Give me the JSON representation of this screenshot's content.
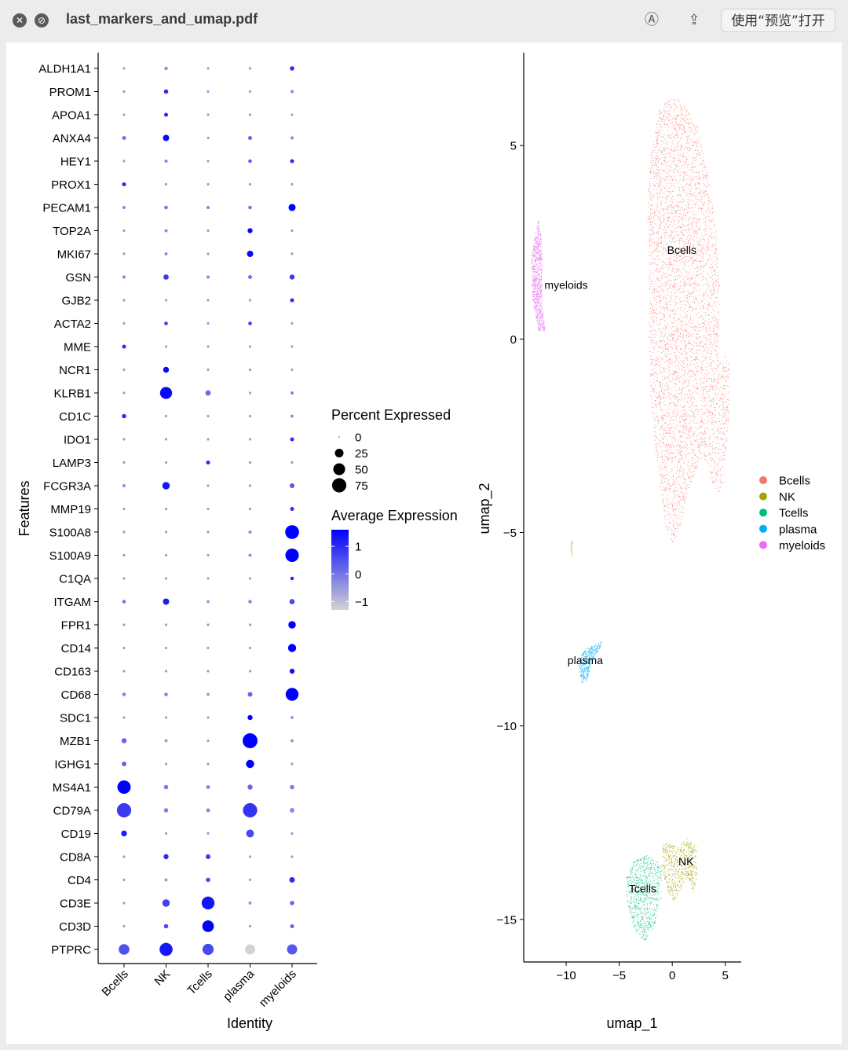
{
  "window": {
    "title": "last_markers_and_umap.pdf",
    "open_with_label": "使用“预览”打开"
  },
  "chart_data": [
    {
      "type": "dotplot",
      "xlabel": "Identity",
      "ylabel": "Features",
      "identities": [
        "Bcells",
        "NK",
        "Tcells",
        "plasma",
        "myeloids"
      ],
      "features": [
        "ALDH1A1",
        "PROM1",
        "APOA1",
        "ANXA4",
        "HEY1",
        "PROX1",
        "PECAM1",
        "TOP2A",
        "MKI67",
        "GSN",
        "GJB2",
        "ACTA2",
        "MME",
        "NCR1",
        "KLRB1",
        "CD1C",
        "IDO1",
        "LAMP3",
        "FCGR3A",
        "MMP19",
        "S100A8",
        "S100A9",
        "C1QA",
        "ITGAM",
        "FPR1",
        "CD14",
        "CD163",
        "CD68",
        "SDC1",
        "MZB1",
        "IGHG1",
        "MS4A1",
        "CD79A",
        "CD19",
        "CD8A",
        "CD4",
        "CD3E",
        "CD3D",
        "PTPRC"
      ],
      "pct_expressed": [
        [
          1,
          3,
          1,
          1,
          5
        ],
        [
          1,
          5,
          1,
          1,
          2
        ],
        [
          1,
          4,
          1,
          1,
          1
        ],
        [
          4,
          12,
          1,
          4,
          2
        ],
        [
          1,
          2,
          1,
          3,
          4
        ],
        [
          4,
          1,
          1,
          1,
          1
        ],
        [
          2,
          3,
          2,
          3,
          16
        ],
        [
          1,
          2,
          1,
          7,
          1
        ],
        [
          1,
          2,
          1,
          12,
          1
        ],
        [
          2,
          8,
          2,
          4,
          7
        ],
        [
          1,
          1,
          1,
          1,
          4
        ],
        [
          1,
          3,
          1,
          3,
          1
        ],
        [
          4,
          1,
          1,
          1,
          1
        ],
        [
          1,
          10,
          1,
          1,
          1
        ],
        [
          1,
          52,
          8,
          1,
          2
        ],
        [
          5,
          1,
          1,
          1,
          2
        ],
        [
          1,
          1,
          1,
          1,
          4
        ],
        [
          1,
          1,
          4,
          1,
          1
        ],
        [
          2,
          18,
          1,
          1,
          6
        ],
        [
          1,
          1,
          1,
          1,
          4
        ],
        [
          1,
          1,
          1,
          2,
          70
        ],
        [
          1,
          1,
          1,
          2,
          66
        ],
        [
          1,
          1,
          1,
          1,
          3
        ],
        [
          3,
          12,
          2,
          3,
          8
        ],
        [
          1,
          1,
          1,
          1,
          18
        ],
        [
          1,
          1,
          1,
          1,
          22
        ],
        [
          1,
          1,
          1,
          1,
          7
        ],
        [
          3,
          3,
          2,
          6,
          60
        ],
        [
          1,
          1,
          1,
          7,
          2
        ],
        [
          7,
          2,
          1,
          82,
          2
        ],
        [
          6,
          1,
          1,
          22,
          1
        ],
        [
          65,
          5,
          4,
          7,
          5
        ],
        [
          75,
          5,
          4,
          75,
          6
        ],
        [
          10,
          1,
          1,
          20,
          1
        ],
        [
          1,
          7,
          6,
          1,
          1
        ],
        [
          1,
          2,
          5,
          1,
          9
        ],
        [
          1,
          18,
          60,
          2,
          5
        ],
        [
          1,
          5,
          48,
          1,
          4
        ],
        [
          40,
          62,
          44,
          35,
          36
        ]
      ],
      "avg_expression": [
        [
          -0.5,
          -0.4,
          -0.5,
          -0.5,
          1.0
        ],
        [
          -0.5,
          1.0,
          -0.5,
          -0.5,
          -0.3
        ],
        [
          -0.5,
          1.0,
          -0.5,
          -0.5,
          -0.5
        ],
        [
          0.0,
          1.5,
          -0.5,
          0.2,
          -0.3
        ],
        [
          -0.5,
          -0.2,
          -0.5,
          0.3,
          1.0
        ],
        [
          1.0,
          -0.5,
          -0.5,
          -0.5,
          -0.5
        ],
        [
          -0.2,
          0.0,
          -0.2,
          0.0,
          1.6
        ],
        [
          -0.5,
          -0.3,
          -0.5,
          1.5,
          -0.5
        ],
        [
          -0.5,
          -0.3,
          -0.5,
          1.5,
          -0.5
        ],
        [
          -0.2,
          0.8,
          -0.2,
          0.0,
          0.8
        ],
        [
          -0.5,
          -0.5,
          -0.5,
          -0.5,
          1.0
        ],
        [
          -0.5,
          0.8,
          -0.5,
          0.8,
          -0.5
        ],
        [
          1.0,
          -0.5,
          -0.5,
          -0.5,
          -0.5
        ],
        [
          -0.5,
          1.5,
          -0.5,
          -0.5,
          -0.5
        ],
        [
          -0.5,
          1.5,
          0.2,
          -0.5,
          -0.2
        ],
        [
          1.0,
          -0.5,
          -0.5,
          -0.5,
          -0.3
        ],
        [
          -0.5,
          -0.5,
          -0.5,
          -0.5,
          1.0
        ],
        [
          -0.5,
          -0.5,
          1.0,
          -0.5,
          -0.5
        ],
        [
          -0.3,
          1.3,
          -0.5,
          -0.5,
          0.4
        ],
        [
          -0.5,
          -0.5,
          -0.5,
          -0.5,
          1.0
        ],
        [
          -0.5,
          -0.5,
          -0.5,
          -0.3,
          1.6
        ],
        [
          -0.5,
          -0.5,
          -0.5,
          -0.3,
          1.6
        ],
        [
          -0.5,
          -0.5,
          -0.5,
          -0.5,
          1.0
        ],
        [
          0.0,
          1.2,
          -0.5,
          -0.3,
          0.6
        ],
        [
          -0.5,
          -0.5,
          -0.5,
          -0.5,
          1.6
        ],
        [
          -0.5,
          -0.5,
          -0.5,
          -0.5,
          1.6
        ],
        [
          -0.5,
          -0.5,
          -0.5,
          -0.5,
          1.4
        ],
        [
          -0.2,
          -0.2,
          -0.5,
          0.2,
          1.6
        ],
        [
          -0.5,
          -0.5,
          -0.5,
          1.6,
          -0.5
        ],
        [
          0.2,
          -0.5,
          -0.5,
          1.6,
          -0.5
        ],
        [
          0.2,
          -0.5,
          -0.5,
          1.6,
          -0.5
        ],
        [
          1.6,
          -0.1,
          -0.3,
          0.2,
          -0.1
        ],
        [
          0.8,
          -0.2,
          -0.3,
          0.9,
          -0.3
        ],
        [
          1.2,
          -0.5,
          -0.5,
          0.6,
          -0.5
        ],
        [
          -0.5,
          1.0,
          0.8,
          -0.5,
          -0.5
        ],
        [
          -0.5,
          -0.5,
          0.6,
          -0.5,
          1.0
        ],
        [
          -0.5,
          0.7,
          1.3,
          -0.5,
          0.2
        ],
        [
          -0.5,
          0.6,
          1.6,
          -0.5,
          0.2
        ],
        [
          0.5,
          1.3,
          0.6,
          -1.3,
          0.4
        ]
      ],
      "size_legend": {
        "title": "Percent Expressed",
        "breaks": [
          0,
          25,
          50,
          75
        ]
      },
      "color_legend": {
        "title": "Average Expression",
        "breaks": [
          1,
          0,
          -1
        ],
        "labels": [
          "1",
          "0",
          "−1"
        ],
        "low_color": "#d3d3d3",
        "high_color": "#0000ff",
        "range": [
          -1.3,
          1.6
        ]
      }
    },
    {
      "type": "scatter",
      "xlabel": "umap_1",
      "ylabel": "umap_2",
      "xlim": [
        -14,
        6.5
      ],
      "ylim": [
        -16.1,
        7.4
      ],
      "x_ticks": [
        -10,
        -5,
        0,
        5
      ],
      "x_tick_labels": [
        "−10",
        "−5",
        "0",
        "5"
      ],
      "y_ticks": [
        5,
        0,
        -5,
        -10,
        -15
      ],
      "y_tick_labels": [
        "5",
        "0",
        "−5",
        "−10",
        "−15"
      ],
      "legend": {
        "entries": [
          {
            "name": "Bcells",
            "color": "#f8766d"
          },
          {
            "name": "NK",
            "color": "#a3a500"
          },
          {
            "name": "Tcells",
            "color": "#00bf7d"
          },
          {
            "name": "plasma",
            "color": "#00b0f6"
          },
          {
            "name": "myeloids",
            "color": "#e76bf3"
          }
        ]
      },
      "cluster_labels": [
        {
          "text": "Bcells",
          "x": 0.9,
          "y": 2.3
        },
        {
          "text": "myeloids",
          "x": -10,
          "y": 1.4
        },
        {
          "text": "plasma",
          "x": -8.2,
          "y": -8.3
        },
        {
          "text": "Tcells",
          "x": -2.8,
          "y": -14.2
        },
        {
          "text": "NK",
          "x": 1.3,
          "y": -13.5
        }
      ],
      "clusters": [
        {
          "name": "Bcells",
          "n": 9000,
          "shape": [
            [
              -0.5,
              6.2
            ],
            [
              0.7,
              6.2
            ],
            [
              2.3,
              5.6
            ],
            [
              3.4,
              4.2
            ],
            [
              4.1,
              2.8
            ],
            [
              4.5,
              1.0
            ],
            [
              4.3,
              -0.5
            ],
            [
              5.4,
              -0.4
            ],
            [
              5.3,
              -2.2
            ],
            [
              4.8,
              -3.7
            ],
            [
              4.4,
              -4.0
            ],
            [
              3.7,
              -3.7
            ],
            [
              2.9,
              -3.0
            ],
            [
              2.2,
              -3.4
            ],
            [
              1.4,
              -4.0
            ],
            [
              0.8,
              -4.8
            ],
            [
              0.0,
              -5.3
            ],
            [
              -0.6,
              -5.0
            ],
            [
              -1.3,
              -3.5
            ],
            [
              -2.1,
              -1.7
            ],
            [
              -2.2,
              0.2
            ],
            [
              -2.2,
              1.9
            ],
            [
              -2.4,
              3.6
            ],
            [
              -2.0,
              4.8
            ],
            [
              -1.3,
              5.9
            ]
          ]
        },
        {
          "name": "myeloids",
          "n": 900,
          "shape": [
            [
              -12.6,
              3.1
            ],
            [
              -12.3,
              2.5
            ],
            [
              -12.3,
              1.0
            ],
            [
              -12.0,
              0.2
            ],
            [
              -12.6,
              0.2
            ],
            [
              -13.2,
              1.0
            ],
            [
              -13.3,
              2.1
            ],
            [
              -12.9,
              2.8
            ]
          ]
        },
        {
          "name": "plasma",
          "n": 420,
          "shape": [
            [
              -6.6,
              -7.8
            ],
            [
              -6.9,
              -8.0
            ],
            [
              -7.7,
              -8.4
            ],
            [
              -8.0,
              -8.8
            ],
            [
              -8.6,
              -8.9
            ],
            [
              -8.9,
              -8.3
            ],
            [
              -8.2,
              -8.0
            ],
            [
              -7.4,
              -7.9
            ]
          ]
        },
        {
          "name": "Tcells",
          "n": 900,
          "shape": [
            [
              -3.7,
              -13.5
            ],
            [
              -2.4,
              -13.3
            ],
            [
              -1.0,
              -13.6
            ],
            [
              -1.0,
              -14.3
            ],
            [
              -1.6,
              -15.1
            ],
            [
              -2.6,
              -15.6
            ],
            [
              -3.6,
              -15.3
            ],
            [
              -4.3,
              -14.6
            ],
            [
              -4.4,
              -13.9
            ]
          ]
        },
        {
          "name": "NK",
          "n": 700,
          "shape": [
            [
              -0.9,
              -13.0
            ],
            [
              0.3,
              -13.1
            ],
            [
              1.3,
              -12.9
            ],
            [
              2.3,
              -13.1
            ],
            [
              2.3,
              -14.0
            ],
            [
              1.9,
              -14.3
            ],
            [
              1.4,
              -13.9
            ],
            [
              0.8,
              -14.2
            ],
            [
              0.0,
              -14.6
            ],
            [
              -0.5,
              -14.2
            ],
            [
              -1.0,
              -13.7
            ]
          ]
        },
        {
          "name": "NK",
          "n": 25,
          "shape": [
            [
              -9.6,
              -5.2
            ],
            [
              -9.4,
              -5.2
            ],
            [
              -9.4,
              -5.6
            ],
            [
              -9.6,
              -5.6
            ]
          ]
        }
      ]
    }
  ]
}
